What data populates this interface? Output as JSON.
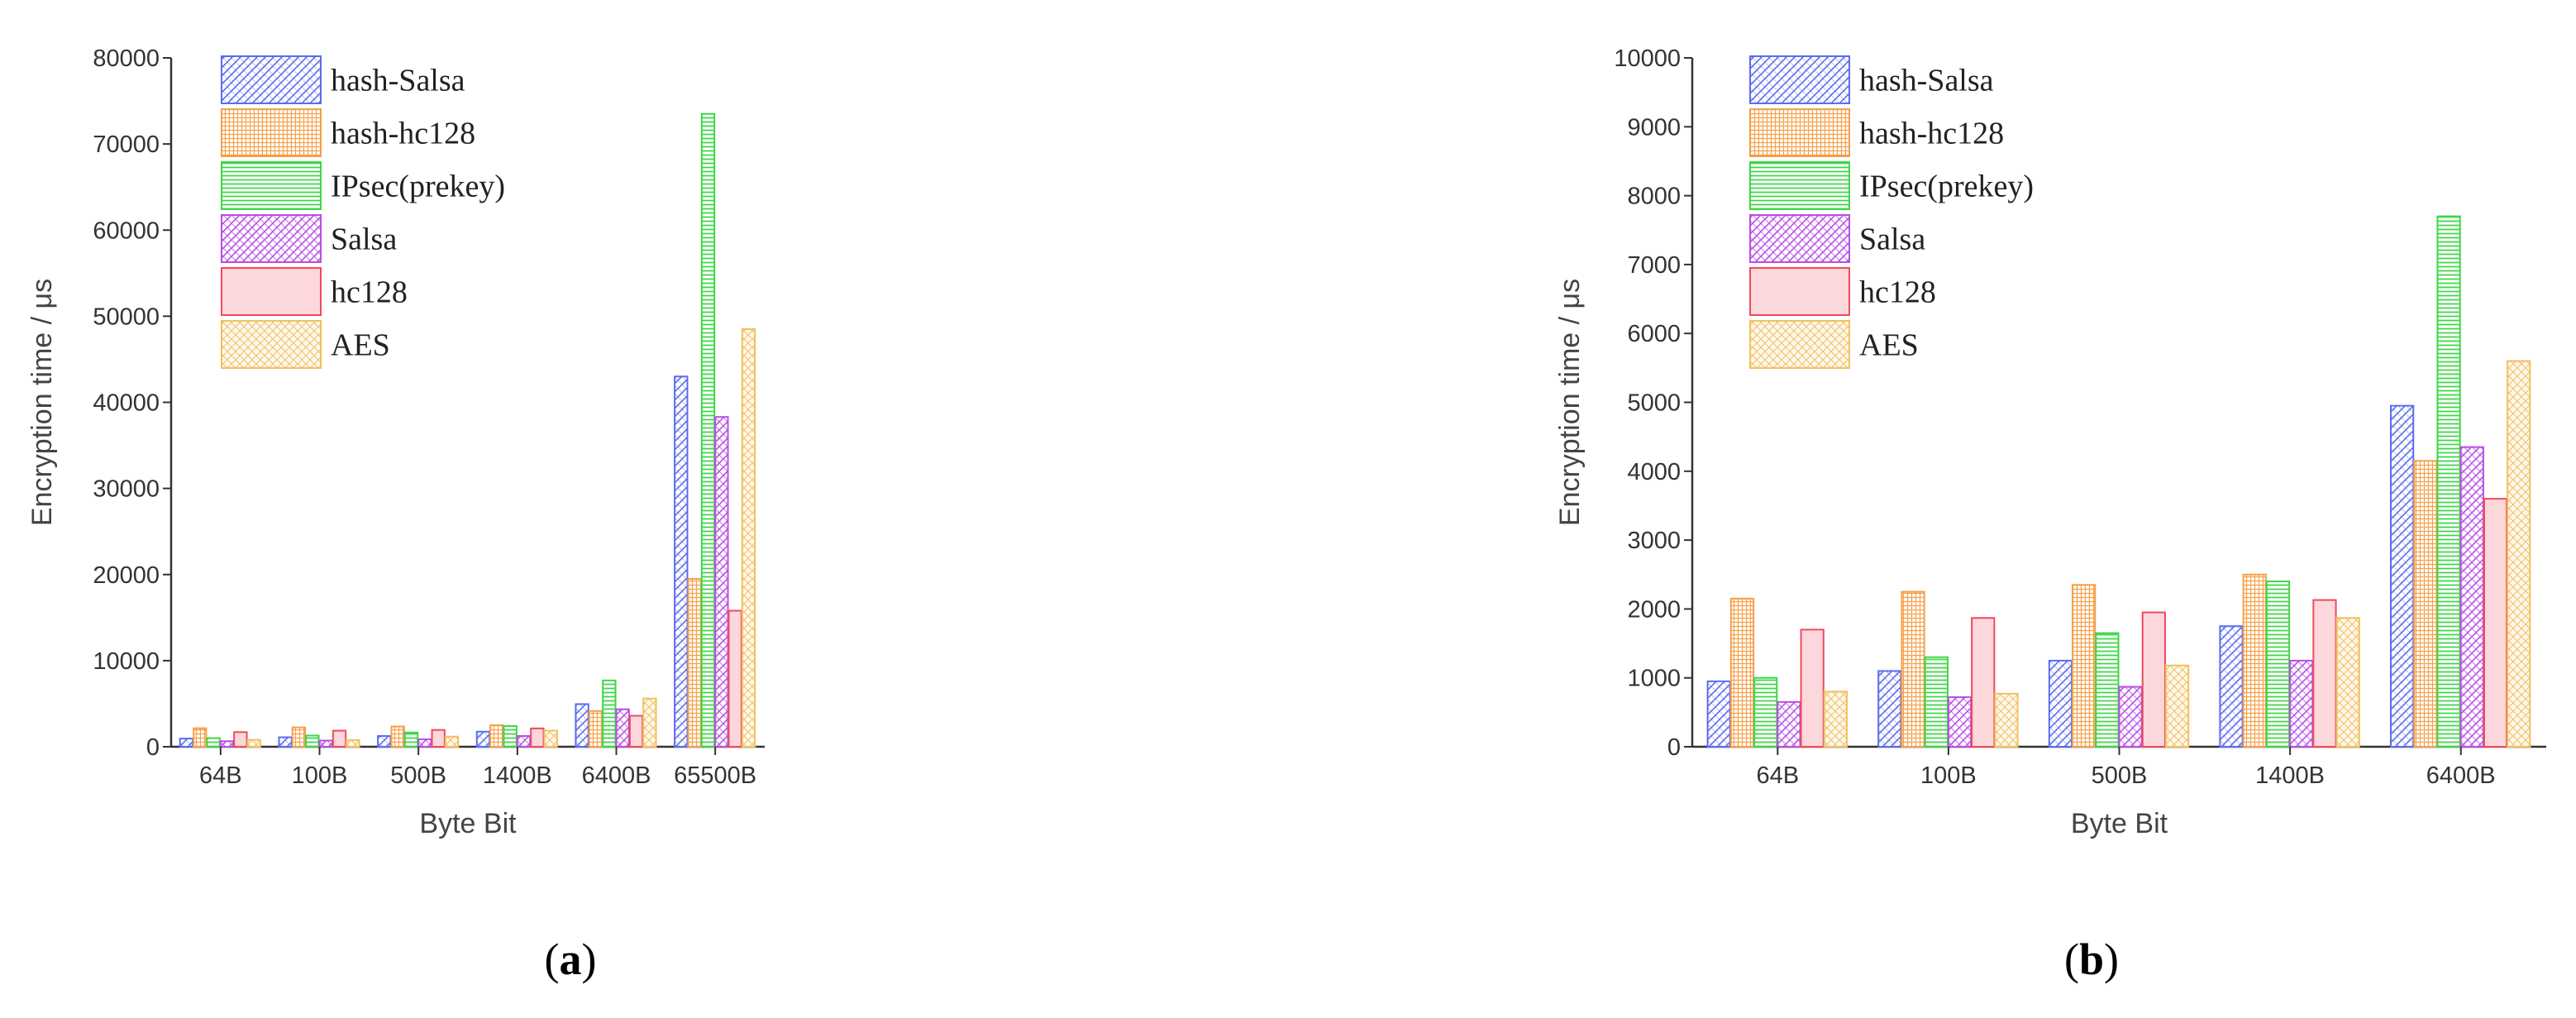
{
  "colors": {
    "hash-Salsa": "#5b6cf0",
    "hash-hc128": "#f5a04a",
    "IPsec(prekey)": "#3ed646",
    "Salsa": "#b84ee6",
    "hc128": "#f04a5c",
    "AES": "#f2c060"
  },
  "panels": [
    {
      "label_open": "(",
      "label_letter": "a",
      "label_close": ")"
    },
    {
      "label_open": "(",
      "label_letter": "b",
      "label_close": ")"
    }
  ],
  "chart_data": [
    {
      "type": "bar",
      "xlabel": "Byte Bit",
      "ylabel": "Encryption time / μs",
      "ylim": [
        0,
        80000
      ],
      "yticks": [
        "0",
        "10000",
        "20000",
        "30000",
        "40000",
        "50000",
        "60000",
        "70000",
        "80000"
      ],
      "legend_position": "top-left",
      "categories": [
        "64B",
        "100B",
        "500B",
        "1400B",
        "6400B",
        "65500B"
      ],
      "series": [
        {
          "name": "hash-Salsa",
          "values": [
            950,
            1100,
            1250,
            1750,
            4950,
            43000
          ]
        },
        {
          "name": "hash-hc128",
          "values": [
            2150,
            2250,
            2350,
            2500,
            4150,
            19500
          ]
        },
        {
          "name": "IPsec(prekey)",
          "values": [
            1000,
            1300,
            1650,
            2400,
            7700,
            73500
          ]
        },
        {
          "name": "Salsa",
          "values": [
            650,
            720,
            870,
            1250,
            4350,
            38300
          ]
        },
        {
          "name": "hc128",
          "values": [
            1700,
            1870,
            1950,
            2130,
            3600,
            15800
          ]
        },
        {
          "name": "AES",
          "values": [
            800,
            770,
            1180,
            1870,
            5600,
            48500
          ]
        }
      ]
    },
    {
      "type": "bar",
      "xlabel": "Byte Bit",
      "ylabel": "Encryption time / μs",
      "ylim": [
        0,
        10000
      ],
      "yticks": [
        "0",
        "1000",
        "2000",
        "3000",
        "4000",
        "5000",
        "6000",
        "7000",
        "8000",
        "9000",
        "10000"
      ],
      "legend_position": "top-left",
      "categories": [
        "64B",
        "100B",
        "500B",
        "1400B",
        "6400B"
      ],
      "series": [
        {
          "name": "hash-Salsa",
          "values": [
            950,
            1100,
            1250,
            1750,
            4950
          ]
        },
        {
          "name": "hash-hc128",
          "values": [
            2150,
            2250,
            2350,
            2500,
            4150
          ]
        },
        {
          "name": "IPsec(prekey)",
          "values": [
            1000,
            1300,
            1650,
            2400,
            7700
          ]
        },
        {
          "name": "Salsa",
          "values": [
            650,
            720,
            870,
            1250,
            4350
          ]
        },
        {
          "name": "hc128",
          "values": [
            1700,
            1870,
            1950,
            2130,
            3600
          ]
        },
        {
          "name": "AES",
          "values": [
            800,
            770,
            1180,
            1870,
            5600
          ]
        }
      ]
    }
  ]
}
